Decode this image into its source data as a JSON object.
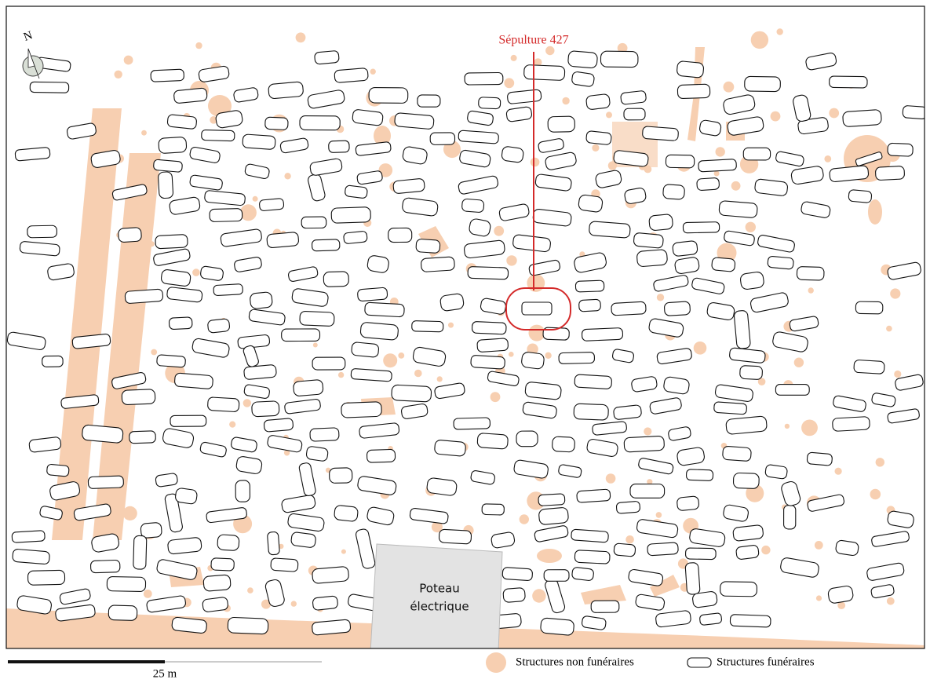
{
  "compass": {
    "label": "N"
  },
  "annotation": {
    "label": "Sépulture 427"
  },
  "pole": {
    "lines": [
      "Poteau",
      "électrique"
    ]
  },
  "scale_bar": {
    "label": "25 m"
  },
  "legend": {
    "items": [
      {
        "label": "Structures non funéraires"
      },
      {
        "label": "Structures funéraires"
      }
    ]
  }
}
